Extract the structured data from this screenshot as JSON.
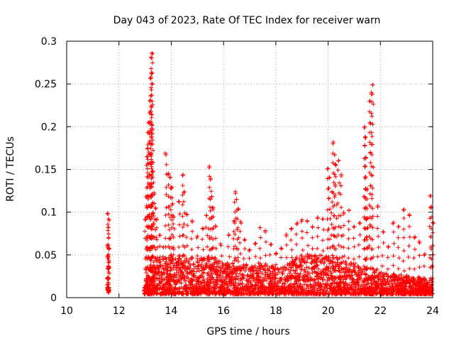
{
  "chart_data": {
    "type": "scatter",
    "title": "Day 043 of 2023, Rate Of TEC Index for receiver warn",
    "xlabel": "GPS time / hours",
    "ylabel": "ROTI / TECUs",
    "xlim": [
      10,
      24
    ],
    "ylim": [
      0,
      0.3
    ],
    "xticks": [
      "10",
      "12",
      "14",
      "16",
      "18",
      "20",
      "22",
      "24"
    ],
    "xtick_values": [
      10,
      12,
      14,
      16,
      18,
      20,
      22,
      24
    ],
    "yticks": [
      "0",
      "0.05",
      "0.1",
      "0.15",
      "0.2",
      "0.25",
      "0.3"
    ],
    "ytick_values": [
      0,
      0.05,
      0.1,
      0.15,
      0.2,
      0.25,
      0.3
    ],
    "grid": true,
    "marker": "+",
    "color": "#ff0000",
    "x_range_of_data": [
      11.55,
      24
    ],
    "series": [
      {
        "points": [
          [
            11.58,
            0.098
          ],
          [
            11.6,
            0.092
          ],
          [
            11.59,
            0.082
          ],
          [
            11.57,
            0.061
          ],
          [
            11.61,
            0.058
          ],
          [
            11.58,
            0.049
          ],
          [
            11.6,
            0.041
          ],
          [
            11.59,
            0.036
          ],
          [
            11.61,
            0.03
          ],
          [
            11.57,
            0.022
          ],
          [
            11.6,
            0.016
          ],
          [
            11.58,
            0.011
          ],
          [
            11.62,
            0.008
          ],
          [
            11.59,
            0.006
          ],
          [
            13.02,
            0.091
          ],
          [
            13.05,
            0.118
          ],
          [
            13.08,
            0.165
          ],
          [
            13.1,
            0.175
          ],
          [
            13.12,
            0.193
          ],
          [
            13.15,
            0.205
          ],
          [
            13.18,
            0.23
          ],
          [
            13.2,
            0.218
          ],
          [
            13.22,
            0.258
          ],
          [
            13.24,
            0.262
          ],
          [
            13.25,
            0.28
          ],
          [
            13.26,
            0.286
          ],
          [
            13.28,
            0.196
          ],
          [
            13.3,
            0.148
          ],
          [
            13.35,
            0.121
          ],
          [
            13.4,
            0.104
          ],
          [
            13.45,
            0.092
          ],
          [
            13.55,
            0.073
          ],
          [
            13.7,
            0.059
          ],
          [
            13.8,
            0.167
          ],
          [
            13.9,
            0.145
          ],
          [
            13.95,
            0.141
          ],
          [
            14.0,
            0.128
          ],
          [
            14.05,
            0.11
          ],
          [
            14.1,
            0.094
          ],
          [
            14.3,
            0.112
          ],
          [
            14.45,
            0.144
          ],
          [
            14.5,
            0.124
          ],
          [
            14.6,
            0.097
          ],
          [
            14.8,
            0.09
          ],
          [
            15.0,
            0.072
          ],
          [
            15.2,
            0.081
          ],
          [
            15.35,
            0.096
          ],
          [
            15.45,
            0.152
          ],
          [
            15.5,
            0.138
          ],
          [
            15.55,
            0.118
          ],
          [
            15.6,
            0.105
          ],
          [
            15.7,
            0.083
          ],
          [
            15.9,
            0.061
          ],
          [
            16.2,
            0.074
          ],
          [
            16.4,
            0.09
          ],
          [
            16.45,
            0.124
          ],
          [
            16.5,
            0.115
          ],
          [
            16.55,
            0.104
          ],
          [
            16.65,
            0.089
          ],
          [
            16.8,
            0.068
          ],
          [
            17.0,
            0.056
          ],
          [
            17.2,
            0.063
          ],
          [
            17.4,
            0.082
          ],
          [
            17.6,
            0.077
          ],
          [
            17.8,
            0.062
          ],
          [
            18.0,
            0.051
          ],
          [
            18.2,
            0.058
          ],
          [
            18.4,
            0.074
          ],
          [
            18.6,
            0.081
          ],
          [
            18.8,
            0.086
          ],
          [
            19.0,
            0.091
          ],
          [
            19.2,
            0.089
          ],
          [
            19.4,
            0.083
          ],
          [
            19.6,
            0.094
          ],
          [
            19.8,
            0.092
          ],
          [
            20.0,
            0.151
          ],
          [
            20.05,
            0.141
          ],
          [
            20.15,
            0.124
          ],
          [
            20.2,
            0.182
          ],
          [
            20.25,
            0.167
          ],
          [
            20.3,
            0.155
          ],
          [
            20.4,
            0.16
          ],
          [
            20.5,
            0.144
          ],
          [
            20.6,
            0.098
          ],
          [
            20.8,
            0.102
          ],
          [
            21.0,
            0.083
          ],
          [
            21.2,
            0.087
          ],
          [
            21.4,
            0.2
          ],
          [
            21.42,
            0.188
          ],
          [
            21.45,
            0.164
          ],
          [
            21.48,
            0.126
          ],
          [
            21.5,
            0.093
          ],
          [
            21.6,
            0.23
          ],
          [
            21.65,
            0.24
          ],
          [
            21.7,
            0.249
          ],
          [
            21.9,
            0.106
          ],
          [
            22.1,
            0.077
          ],
          [
            22.3,
            0.06
          ],
          [
            22.5,
            0.088
          ],
          [
            22.7,
            0.083
          ],
          [
            22.9,
            0.103
          ],
          [
            23.1,
            0.097
          ],
          [
            23.3,
            0.07
          ],
          [
            23.5,
            0.064
          ],
          [
            23.7,
            0.051
          ],
          [
            23.9,
            0.119
          ],
          [
            23.95,
            0.106
          ],
          [
            24.0,
            0.088
          ]
        ]
      }
    ],
    "dense_band": {
      "x_start": 12.95,
      "x_end": 24.0,
      "y_min": 0.004,
      "y_max": 0.05,
      "description_values": [
        [
          13.0,
          0.035
        ],
        [
          13.5,
          0.045
        ],
        [
          14.0,
          0.052
        ],
        [
          14.5,
          0.05
        ],
        [
          15.0,
          0.046
        ],
        [
          15.5,
          0.05
        ],
        [
          16.0,
          0.04
        ],
        [
          16.5,
          0.045
        ],
        [
          17.0,
          0.038
        ],
        [
          17.5,
          0.042
        ],
        [
          18.0,
          0.036
        ],
        [
          18.5,
          0.04
        ],
        [
          19.0,
          0.05
        ],
        [
          19.5,
          0.052
        ],
        [
          20.0,
          0.048
        ],
        [
          20.5,
          0.046
        ],
        [
          21.0,
          0.04
        ],
        [
          21.5,
          0.036
        ],
        [
          22.0,
          0.03
        ],
        [
          22.5,
          0.028
        ],
        [
          23.0,
          0.026
        ],
        [
          23.5,
          0.024
        ],
        [
          24.0,
          0.02
        ]
      ]
    }
  }
}
